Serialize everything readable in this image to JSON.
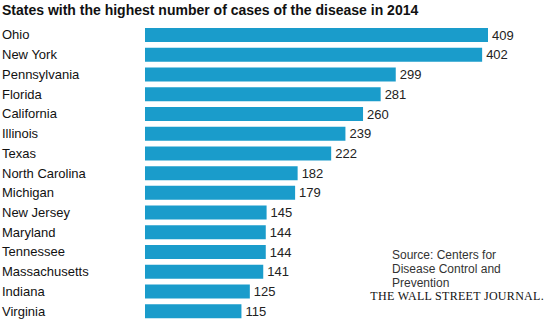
{
  "chart_data": {
    "type": "bar",
    "title": "States with the highest number of cases of the disease in 2014",
    "orientation": "horizontal",
    "categories": [
      "Ohio",
      "New York",
      "Pennsylvania",
      "Florida",
      "California",
      "Illinois",
      "Texas",
      "North Carolina",
      "Michigan",
      "New Jersey",
      "Maryland",
      "Tennessee",
      "Massachusetts",
      "Indiana",
      "Virginia"
    ],
    "values": [
      409,
      402,
      299,
      281,
      260,
      239,
      222,
      182,
      179,
      145,
      144,
      144,
      141,
      125,
      115
    ],
    "color": "#1a9ccb",
    "data_labels": true,
    "tick_labels": "y",
    "grid": false,
    "annotations": [
      "Source: Centers for Disease Control and Prevention",
      "THE WALL STREET JOURNAL."
    ]
  }
}
